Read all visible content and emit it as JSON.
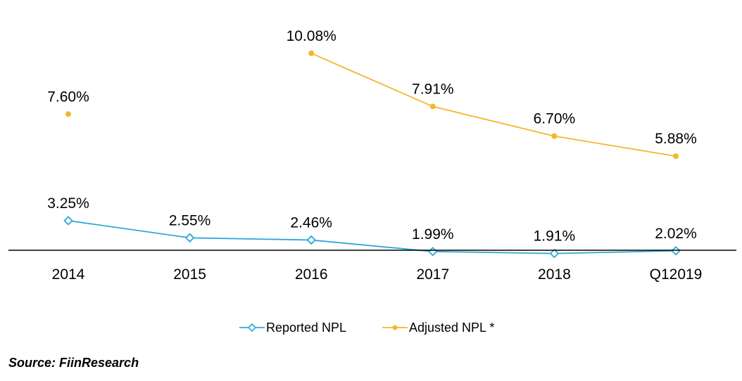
{
  "chart_data": {
    "type": "line",
    "categories": [
      "2014",
      "2015",
      "2016",
      "2017",
      "2018",
      "Q12019"
    ],
    "series": [
      {
        "name": "Reported NPL",
        "color": "#2ea8d8",
        "marker": "diamond-open",
        "values": [
          3.25,
          2.55,
          2.46,
          1.99,
          1.91,
          2.02
        ],
        "labels": [
          "3.25%",
          "2.55%",
          "2.46%",
          "1.99%",
          "1.91%",
          "2.02%"
        ]
      },
      {
        "name": "Adjusted NPL *",
        "color": "#f4b630",
        "marker": "dot",
        "values": [
          7.6,
          null,
          10.08,
          7.91,
          6.7,
          5.88
        ],
        "labels": [
          "7.60%",
          "",
          "10.08%",
          "7.91%",
          "6.70%",
          "5.88%"
        ]
      }
    ],
    "legend_position": "bottom-center",
    "grid": false
  },
  "source": "Source: FiinResearch"
}
